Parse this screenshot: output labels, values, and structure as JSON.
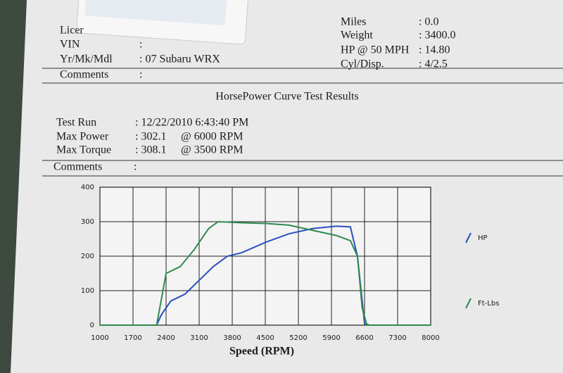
{
  "vehicle": [
    {
      "label": "Licer"
    },
    {
      "label": "VIN",
      "value": ":"
    },
    {
      "label": "Yr/Mk/Mdl",
      "value": ": 07 Subaru WRX"
    },
    {
      "label": "Comments",
      "value": ":"
    }
  ],
  "specs": [
    {
      "label": "Miles",
      "value": ": 0.0"
    },
    {
      "label": "Weight",
      "value": ": 3400.0"
    },
    {
      "label": "HP @ 50 MPH",
      "value": ": 14.80"
    },
    {
      "label": "Cyl/Disp.",
      "value": ": 4/2.5"
    }
  ],
  "section_title": "HorsePower Curve Test Results",
  "results": [
    {
      "label": "Test Run",
      "value": ": 12/22/2010 6:43:40 PM"
    },
    {
      "label": "Max Power",
      "value": ": 302.1",
      "at": "@ 6000 RPM"
    },
    {
      "label": "Max Torque",
      "value": ": 308.1",
      "at": "@ 3500 RPM"
    },
    {
      "label": "Comments",
      "value": ":"
    }
  ],
  "chart_data": {
    "type": "line",
    "xlabel": "Speed (RPM)",
    "xlim": [
      1000,
      8000
    ],
    "xticks": [
      1000,
      1700,
      2400,
      3100,
      3800,
      4500,
      5200,
      5900,
      6600,
      7300,
      8000
    ],
    "ylim": [
      0,
      400
    ],
    "yticks": [
      0,
      100,
      200,
      300,
      400
    ],
    "grid": true,
    "series": [
      {
        "name": "HP",
        "color": "#2a4fc0",
        "x": [
          1000,
          2200,
          2300,
          2500,
          2800,
          3100,
          3400,
          3700,
          4000,
          4500,
          5000,
          5500,
          6000,
          6300,
          6450,
          6600,
          6700,
          8000
        ],
        "values": [
          0,
          0,
          30,
          70,
          90,
          130,
          170,
          200,
          210,
          240,
          265,
          280,
          287,
          285,
          200,
          5,
          0,
          0
        ]
      },
      {
        "name": "Ft-Lbs",
        "color": "#2e8a4e",
        "x": [
          1000,
          2200,
          2400,
          2700,
          3000,
          3300,
          3500,
          4000,
          4500,
          5000,
          5500,
          6000,
          6300,
          6450,
          6550,
          6650,
          8000
        ],
        "values": [
          0,
          0,
          150,
          170,
          220,
          280,
          300,
          297,
          295,
          290,
          275,
          260,
          245,
          200,
          50,
          0,
          0
        ]
      }
    ]
  }
}
